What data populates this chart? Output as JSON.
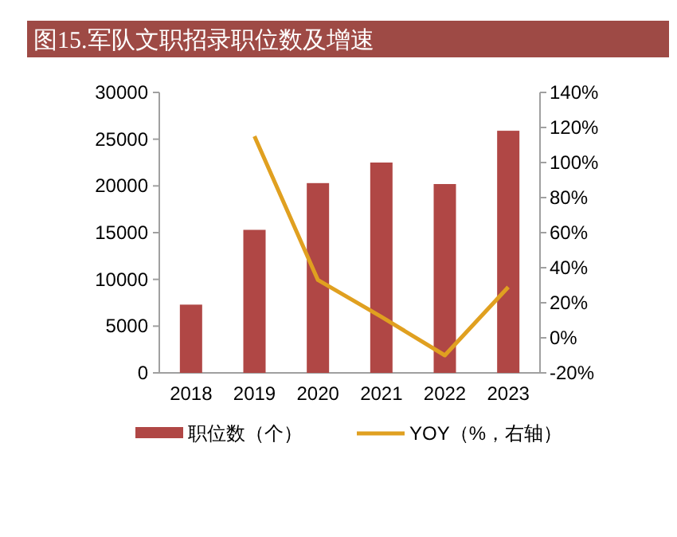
{
  "chart_data": {
    "type": "bar",
    "title": "图15.军队文职招录职位数及增速",
    "categories": [
      "2018",
      "2019",
      "2020",
      "2021",
      "2022",
      "2023"
    ],
    "series": [
      {
        "name": "职位数（个）",
        "color": "#b04745",
        "values": [
          7300,
          15300,
          20300,
          22500,
          20200,
          25900
        ]
      },
      {
        "name": "YOY（%，右轴）",
        "type": "line",
        "axis": "y2",
        "color": "#e0a020",
        "values": [
          null,
          115,
          33,
          12,
          -10,
          29
        ]
      }
    ],
    "ylim": [
      0,
      30000
    ],
    "yticks": [
      0,
      5000,
      10000,
      15000,
      20000,
      25000,
      30000
    ],
    "y2lim": [
      -20,
      140
    ],
    "y2ticks": [
      {
        "value": -20,
        "label": "-20%"
      },
      {
        "value": 0,
        "label": "0%"
      },
      {
        "value": 20,
        "label": "20%"
      },
      {
        "value": 40,
        "label": "40%"
      },
      {
        "value": 60,
        "label": "60%"
      },
      {
        "value": 80,
        "label": "80%"
      },
      {
        "value": 100,
        "label": "100%"
      },
      {
        "value": 120,
        "label": "120%"
      },
      {
        "value": 140,
        "label": "140%"
      }
    ],
    "legend": "bottom",
    "grid": false,
    "marker": "none",
    "line_style": "solid"
  }
}
